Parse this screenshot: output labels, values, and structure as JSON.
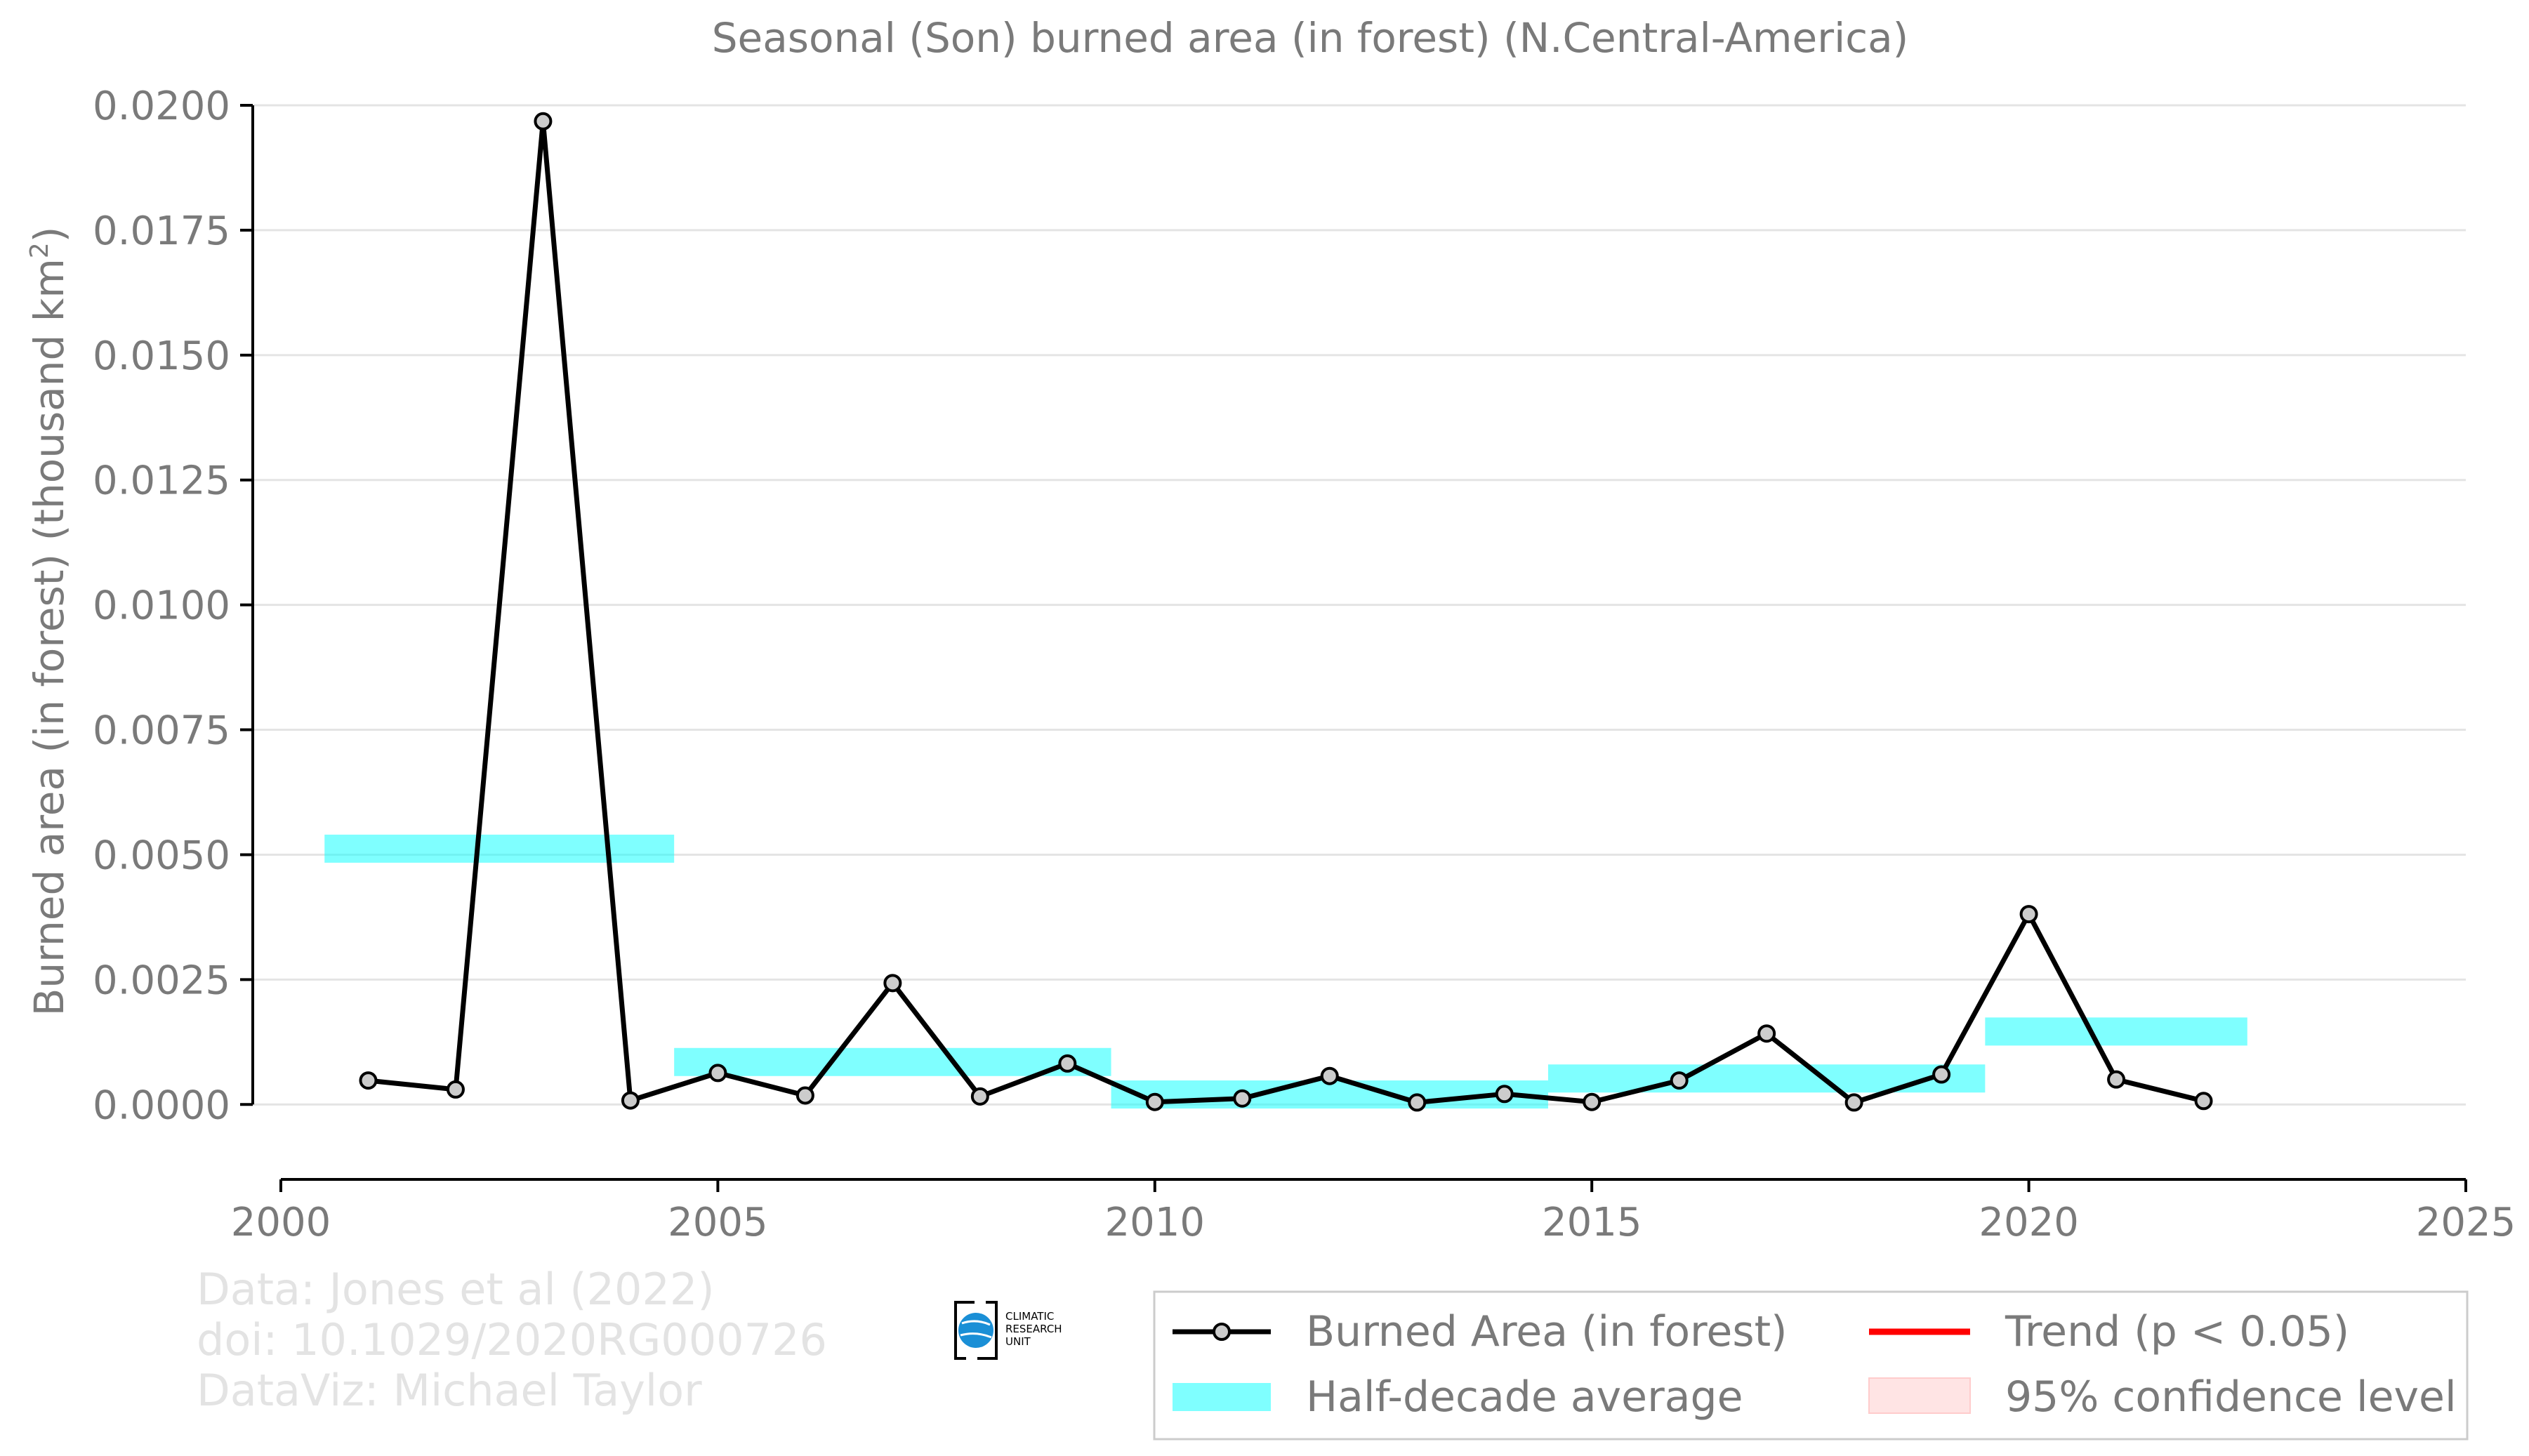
{
  "chart_data": {
    "type": "line",
    "title": "Seasonal (Son) burned area (in forest) (N.Central-America)",
    "ylabel_main": "Burned area (in forest) (thousand km",
    "ylabel_sup": "2",
    "ylabel_end": ")",
    "xlabel": "",
    "xlim": [
      2000,
      2025
    ],
    "ylim": [
      -0.0015,
      0.02
    ],
    "x_ticks": [
      2000,
      2005,
      2010,
      2015,
      2020,
      2025
    ],
    "x_tick_labels": [
      "2000",
      "2005",
      "2010",
      "2015",
      "2020",
      "2025"
    ],
    "y_ticks": [
      0.0,
      0.0025,
      0.005,
      0.0075,
      0.01,
      0.0125,
      0.015,
      0.0175,
      0.02
    ],
    "y_tick_labels": [
      "0.0000",
      "0.0025",
      "0.0050",
      "0.0075",
      "0.0100",
      "0.0125",
      "0.0150",
      "0.0175",
      "0.0200"
    ],
    "grid": "horizontal",
    "series": [
      {
        "name": "Burned Area (in forest)",
        "color": "#000000",
        "marker_fill": "#cccccc",
        "x": [
          2001,
          2002,
          2003,
          2004,
          2005,
          2006,
          2007,
          2008,
          2009,
          2010,
          2011,
          2012,
          2013,
          2014,
          2015,
          2016,
          2017,
          2018,
          2019,
          2020,
          2021,
          2022
        ],
        "y": [
          0.00048,
          0.0003,
          0.01968,
          8e-05,
          0.00063,
          0.00018,
          0.00243,
          0.00016,
          0.00082,
          5e-05,
          0.00012,
          0.00057,
          4e-05,
          0.00021,
          5e-05,
          0.00048,
          0.00142,
          4e-05,
          0.0006,
          0.00381,
          0.0005,
          7e-05
        ]
      }
    ],
    "half_decade_average": {
      "name": "Half-decade average",
      "color": "#00ffff",
      "segments": [
        {
          "x0": 2000.5,
          "x1": 2004.5,
          "y": 0.00512
        },
        {
          "x0": 2004.5,
          "x1": 2009.5,
          "y": 0.00085
        },
        {
          "x0": 2009.5,
          "x1": 2014.5,
          "y": 0.0002
        },
        {
          "x0": 2014.5,
          "x1": 2019.5,
          "y": 0.00052
        },
        {
          "x0": 2019.5,
          "x1": 2022.5,
          "y": 0.00146
        }
      ]
    },
    "legend": {
      "placement": "bottom-right",
      "entries": [
        {
          "label": "Burned Area (in forest)",
          "symbol": "line-marker",
          "color": "#000000"
        },
        {
          "label": "Trend (p < 0.05)",
          "symbol": "line",
          "color": "#ff0000"
        },
        {
          "label": "Half-decade average",
          "symbol": "band",
          "color": "#00ffff"
        },
        {
          "label": "95% confidence level",
          "symbol": "patch",
          "color": "#ffdddd"
        }
      ]
    },
    "credits": [
      "Data: Jones et al (2022)",
      "doi: 10.1029/2020RG000726",
      "DataViz: Michael Taylor"
    ],
    "logo_text": [
      "CLIMATIC",
      "RESEARCH",
      "UNIT"
    ]
  }
}
